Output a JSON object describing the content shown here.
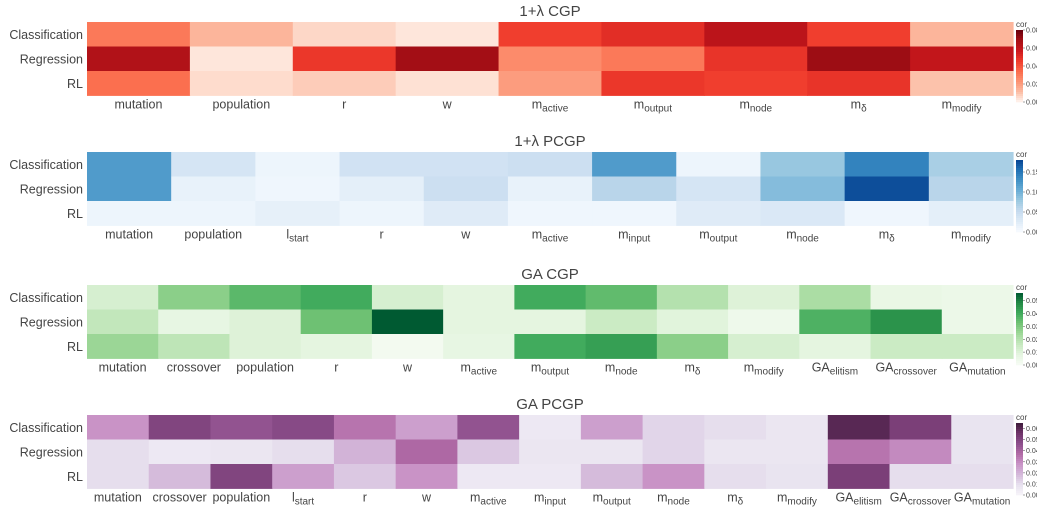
{
  "chart_data": [
    {
      "type": "heatmap",
      "title": "1+λ CGP",
      "palette": "reds",
      "colors": [
        "#fff5f0",
        "#fcbba1",
        "#fc9272",
        "#fb6a4a",
        "#ef3b2c",
        "#cb181d",
        "#a50f15",
        "#67000d"
      ],
      "rows": [
        "Classification",
        "Regression",
        "RL"
      ],
      "columns": [
        {
          "base": "mutation"
        },
        {
          "base": "population"
        },
        {
          "base": "r"
        },
        {
          "base": "w"
        },
        {
          "base": "m",
          "sub": "active"
        },
        {
          "base": "m",
          "sub": "output"
        },
        {
          "base": "m",
          "sub": "node"
        },
        {
          "base": "m",
          "sub": "δ"
        },
        {
          "base": "m",
          "sub": "modify"
        }
      ],
      "values": [
        [
          0.03,
          0.013,
          0.006,
          0.003,
          0.045,
          0.05,
          0.062,
          0.045,
          0.013
        ],
        [
          0.065,
          0.003,
          0.047,
          0.069,
          0.025,
          0.03,
          0.048,
          0.07,
          0.06
        ],
        [
          0.033,
          0.005,
          0.008,
          0.004,
          0.02,
          0.047,
          0.045,
          0.048,
          0.01
        ]
      ],
      "colorbar": {
        "label": "cor",
        "min": 0,
        "max": 0.08,
        "ticks": [
          "0.08",
          "0.06",
          "0.04",
          "0.02",
          "0.00"
        ],
        "tick_values": [
          0.08,
          0.06,
          0.04,
          0.02,
          0
        ]
      }
    },
    {
      "type": "heatmap",
      "title": "1+λ PCGP",
      "palette": "blues",
      "colors": [
        "#f7fbff",
        "#deebf7",
        "#c6dbef",
        "#9ecae1",
        "#6baed6",
        "#4292c6",
        "#2171b5",
        "#084594"
      ],
      "rows": [
        "Classification",
        "Regression",
        "RL"
      ],
      "columns": [
        {
          "base": "mutation"
        },
        {
          "base": "population"
        },
        {
          "base": "l",
          "sub": "start"
        },
        {
          "base": "r"
        },
        {
          "base": "w"
        },
        {
          "base": "m",
          "sub": "active"
        },
        {
          "base": "m",
          "sub": "input"
        },
        {
          "base": "m",
          "sub": "output"
        },
        {
          "base": "m",
          "sub": "node"
        },
        {
          "base": "m",
          "sub": "δ"
        },
        {
          "base": "m",
          "sub": "modify"
        }
      ],
      "values": [
        [
          0.12,
          0.035,
          0.01,
          0.04,
          0.04,
          0.045,
          0.12,
          0.01,
          0.08,
          0.14,
          0.07
        ],
        [
          0.12,
          0.015,
          0.008,
          0.02,
          0.045,
          0.015,
          0.06,
          0.035,
          0.09,
          0.175,
          0.06
        ],
        [
          0.01,
          0.01,
          0.018,
          0.01,
          0.025,
          0.008,
          0.008,
          0.025,
          0.03,
          0.008,
          0.02
        ]
      ],
      "colorbar": {
        "label": "cor",
        "min": 0,
        "max": 0.18,
        "ticks": [
          "0.15",
          "0.10",
          "0.05",
          "0.00"
        ],
        "tick_values": [
          0.15,
          0.1,
          0.05,
          0
        ]
      }
    },
    {
      "type": "heatmap",
      "title": "GA CGP",
      "palette": "greens",
      "colors": [
        "#f7fcf5",
        "#e5f5e0",
        "#c7e9c0",
        "#a1d99b",
        "#74c476",
        "#41ab5d",
        "#238b45",
        "#005a32"
      ],
      "rows": [
        "Classification",
        "Regression",
        "RL"
      ],
      "columns": [
        {
          "base": "mutation"
        },
        {
          "base": "crossover"
        },
        {
          "base": "population"
        },
        {
          "base": "r"
        },
        {
          "base": "w"
        },
        {
          "base": "m",
          "sub": "active"
        },
        {
          "base": "m",
          "sub": "output"
        },
        {
          "base": "m",
          "sub": "node"
        },
        {
          "base": "m",
          "sub": "δ"
        },
        {
          "base": "m",
          "sub": "modify"
        },
        {
          "base": "GA",
          "sub": "elitism"
        },
        {
          "base": "GA",
          "sub": "crossover"
        },
        {
          "base": "GA",
          "sub": "mutation"
        }
      ],
      "values": [
        [
          0.012,
          0.028,
          0.036,
          0.04,
          0.012,
          0.008,
          0.04,
          0.035,
          0.02,
          0.01,
          0.022,
          0.006,
          0.005
        ],
        [
          0.017,
          0.007,
          0.01,
          0.033,
          0.056,
          0.008,
          0.008,
          0.015,
          0.009,
          0.004,
          0.038,
          0.046,
          0.005
        ],
        [
          0.025,
          0.018,
          0.01,
          0.008,
          0.002,
          0.007,
          0.04,
          0.043,
          0.028,
          0.012,
          0.008,
          0.015,
          0.015
        ]
      ],
      "colorbar": {
        "label": "cor",
        "min": 0,
        "max": 0.056,
        "ticks": [
          "0.05",
          "0.04",
          "0.03",
          "0.02",
          "0.01",
          "0.00"
        ],
        "tick_values": [
          0.05,
          0.04,
          0.03,
          0.02,
          0.01,
          0
        ]
      }
    },
    {
      "type": "heatmap",
      "title": "GA PCGP",
      "palette": "purples",
      "colors": [
        "#f7f4f9",
        "#e7e1ef",
        "#d4b9da",
        "#c994c7",
        "#b16aa6",
        "#8c4f8c",
        "#70346a",
        "#3d1a3a"
      ],
      "rows": [
        "Classification",
        "Regression",
        "RL"
      ],
      "columns": [
        {
          "base": "mutation"
        },
        {
          "base": "crossover"
        },
        {
          "base": "population"
        },
        {
          "base": "l",
          "sub": "start"
        },
        {
          "base": "r"
        },
        {
          "base": "w"
        },
        {
          "base": "m",
          "sub": "active"
        },
        {
          "base": "m",
          "sub": "input"
        },
        {
          "base": "m",
          "sub": "output"
        },
        {
          "base": "m",
          "sub": "node"
        },
        {
          "base": "m",
          "sub": "δ"
        },
        {
          "base": "m",
          "sub": "modify"
        },
        {
          "base": "GA",
          "sub": "elitism"
        },
        {
          "base": "GA",
          "sub": "crossover"
        },
        {
          "base": "GA",
          "sub": "mutation"
        }
      ],
      "values": [
        [
          0.028,
          0.05,
          0.045,
          0.048,
          0.035,
          0.025,
          0.045,
          0.006,
          0.025,
          0.012,
          0.01,
          0.007,
          0.06,
          0.052,
          0.008
        ],
        [
          0.01,
          0.006,
          0.007,
          0.01,
          0.02,
          0.038,
          0.015,
          0.007,
          0.007,
          0.012,
          0.007,
          0.007,
          0.035,
          0.03,
          0.008
        ],
        [
          0.01,
          0.018,
          0.05,
          0.025,
          0.015,
          0.028,
          0.006,
          0.006,
          0.018,
          0.028,
          0.01,
          0.008,
          0.052,
          0.01,
          0.01
        ]
      ],
      "colorbar": {
        "label": "cor",
        "min": 0,
        "max": 0.065,
        "ticks": [
          "0.06",
          "0.05",
          "0.04",
          "0.03",
          "0.02",
          "0.01",
          "0.00"
        ],
        "tick_values": [
          0.06,
          0.05,
          0.04,
          0.03,
          0.02,
          0.01,
          0
        ]
      }
    }
  ]
}
